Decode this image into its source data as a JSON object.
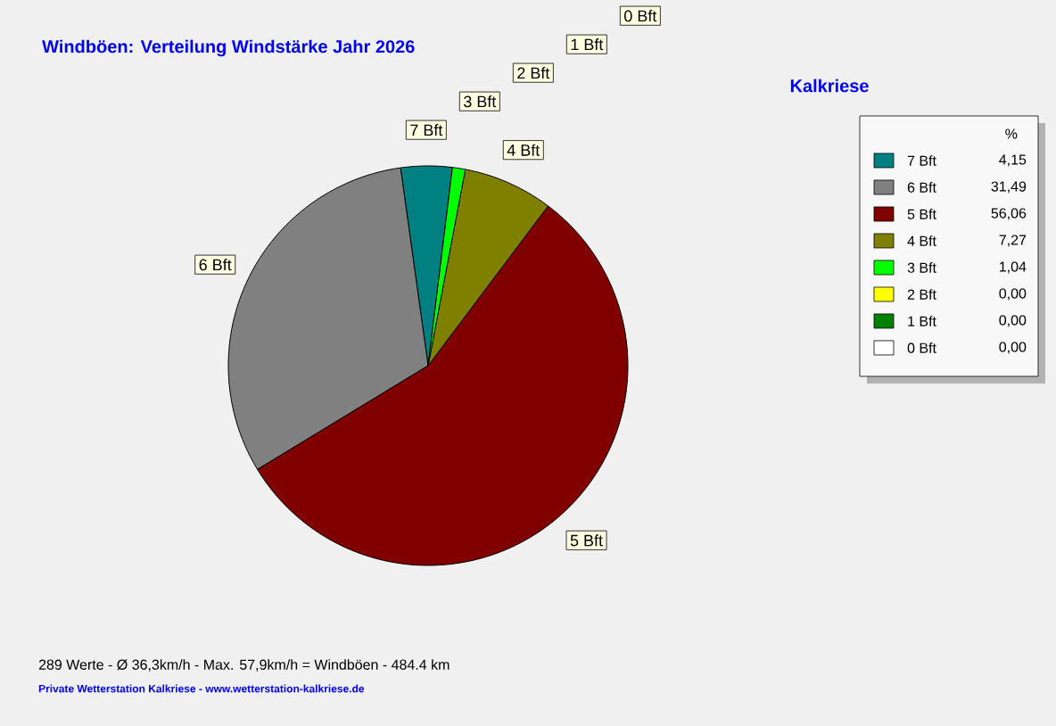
{
  "chart_data": {
    "type": "pie",
    "title": "Windböen: Verteilung Windstärke  Jahr 2026",
    "subtitle": "Kalkriese",
    "categories": [
      "7 Bft",
      "6 Bft",
      "5 Bft",
      "4 Bft",
      "3 Bft",
      "2 Bft",
      "1 Bft",
      "0 Bft"
    ],
    "values": [
      4.15,
      31.49,
      56.06,
      7.27,
      1.04,
      0,
      0,
      0
    ],
    "colors": [
      "#008080",
      "#808080",
      "#800000",
      "#808000",
      "#00ff00",
      "#ffff00",
      "#008000",
      "#ffffff"
    ],
    "value_labels": [
      "4,15",
      "31,49",
      "56,06",
      "7,27",
      "1,04",
      "0,00",
      "0,00",
      "0,00"
    ],
    "legend_title": "%",
    "legend": "top right",
    "annotations": [
      "289 Werte   -   Ø 36,3km/h  -  Max. 57,9km/h = Windböen   -   484.4 km",
      "Private Wetterstation Kalkriese - www.wetterstation-kalkriese.de"
    ]
  }
}
